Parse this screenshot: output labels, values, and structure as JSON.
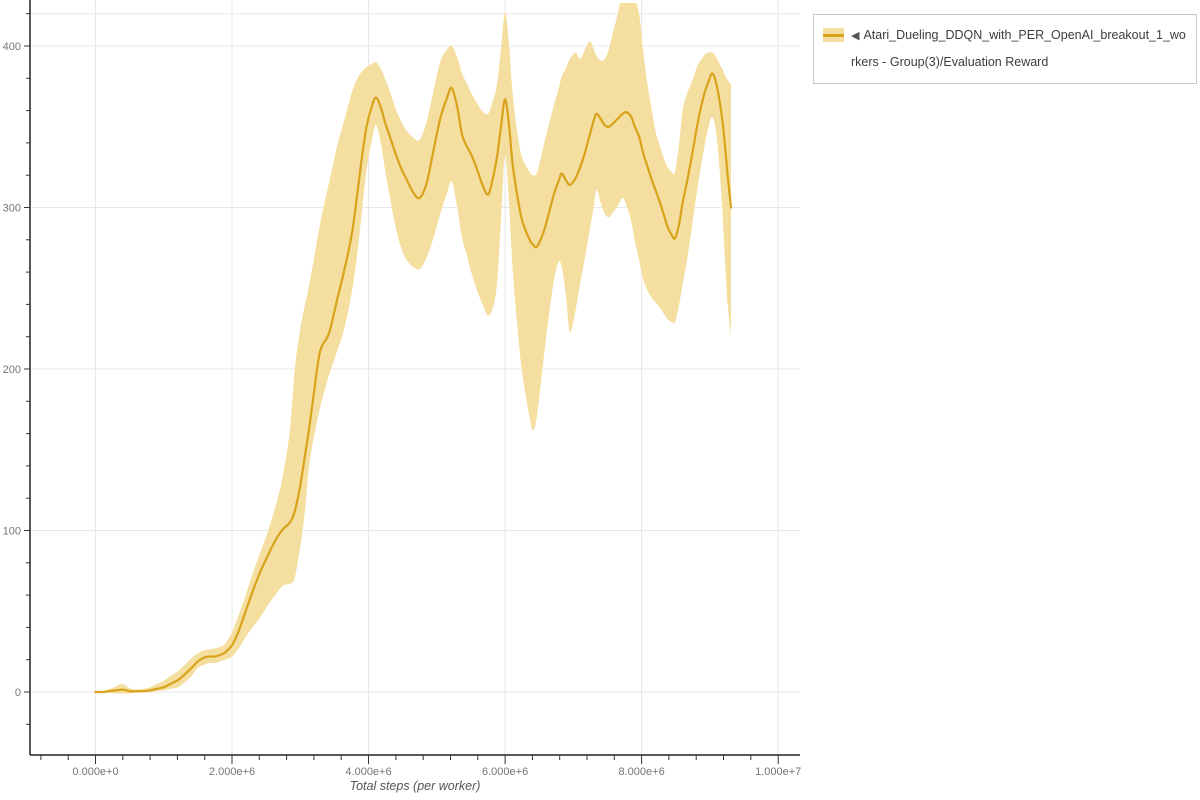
{
  "colors": {
    "line": "#d9a21b",
    "band": "#f5dfa0",
    "grid": "#e7e7e7",
    "axis": "#222222",
    "tick": "#333333",
    "tick_label": "#757575",
    "axis_title": "#555555",
    "legend_border": "#c9c9c9",
    "legend_text": "#3d3d3d"
  },
  "legend": {
    "collapse_icon": "◀",
    "series_label": "Atari_Dueling_DDQN_with_PER_OpenAI_breakout_1_workers - Group(3)/Evaluation Reward"
  },
  "chart_data": {
    "type": "line_with_band",
    "series_name": "Atari_Dueling_DDQN_with_PER_OpenAI_breakout_1_workers - Group(3)/Evaluation Reward",
    "xlabel": "Total steps (per worker)",
    "ylabel": "",
    "x_units": "steps (millions)",
    "grid": true,
    "legend_position": "top-right",
    "x_axis": {
      "major_ticks": [
        {
          "value": 0,
          "label": "0.000e+0"
        },
        {
          "value": 2,
          "label": "2.000e+6"
        },
        {
          "value": 4,
          "label": "4.000e+6"
        },
        {
          "value": 6,
          "label": "6.000e+6"
        },
        {
          "value": 8,
          "label": "8.000e+6"
        },
        {
          "value": 10,
          "label": "1.000e+7"
        }
      ],
      "minor_step": 0.4,
      "minor_range": [
        -0.8,
        10.0
      ],
      "xlim": [
        -0.959,
        10.32
      ]
    },
    "y_axis": {
      "major_ticks": [
        {
          "value": 0,
          "label": "0"
        },
        {
          "value": 100,
          "label": "100"
        },
        {
          "value": 200,
          "label": "200"
        },
        {
          "value": 300,
          "label": "300"
        },
        {
          "value": 400,
          "label": "400"
        }
      ],
      "minor_step": 20,
      "minor_range": [
        -20,
        420
      ],
      "top_boundary": 420,
      "ylim": [
        -39,
        428.5
      ]
    },
    "points_format": [
      "steps_millions",
      "mean",
      "band_low",
      "band_high"
    ],
    "points": [
      [
        0.0,
        0,
        0,
        0
      ],
      [
        0.1,
        0,
        -0.5,
        0.5
      ],
      [
        0.21,
        0.5,
        -0.5,
        2
      ],
      [
        0.3,
        1,
        -1,
        3.5
      ],
      [
        0.39,
        1.5,
        -1,
        5
      ],
      [
        0.5,
        0.5,
        -1,
        2.5
      ],
      [
        0.59,
        0.5,
        -0.5,
        1.5
      ],
      [
        0.7,
        0.5,
        0,
        2
      ],
      [
        0.8,
        1,
        0,
        3
      ],
      [
        0.9,
        2,
        0.5,
        5
      ],
      [
        1.0,
        3,
        1,
        7
      ],
      [
        1.1,
        5,
        2,
        10
      ],
      [
        1.21,
        7.5,
        3,
        13
      ],
      [
        1.31,
        11,
        6,
        17
      ],
      [
        1.41,
        15,
        10,
        21
      ],
      [
        1.5,
        19,
        15,
        24
      ],
      [
        1.6,
        21.5,
        17,
        26
      ],
      [
        1.68,
        22,
        18,
        26.5
      ],
      [
        1.75,
        22,
        18,
        27
      ],
      [
        1.83,
        23,
        19,
        28
      ],
      [
        1.9,
        24.5,
        20,
        30
      ],
      [
        2.0,
        29,
        22,
        37
      ],
      [
        2.1,
        38,
        27,
        48
      ],
      [
        2.2,
        50,
        34,
        60
      ],
      [
        2.3,
        62,
        40,
        73
      ],
      [
        2.41,
        74,
        46,
        86
      ],
      [
        2.53,
        85,
        54,
        100
      ],
      [
        2.65,
        95,
        61,
        117
      ],
      [
        2.75,
        101,
        66,
        135
      ],
      [
        2.85,
        105,
        67,
        163
      ],
      [
        2.92,
        112,
        71,
        200
      ],
      [
        3.0,
        128,
        90,
        225
      ],
      [
        3.07,
        147,
        113,
        240
      ],
      [
        3.13,
        163,
        140,
        252
      ],
      [
        3.2,
        185,
        158,
        268
      ],
      [
        3.29,
        211,
        176,
        290
      ],
      [
        3.42,
        222,
        196,
        315
      ],
      [
        3.54,
        243,
        211,
        338
      ],
      [
        3.65,
        262,
        226,
        355
      ],
      [
        3.76,
        285,
        249,
        372
      ],
      [
        3.84,
        310,
        273,
        380
      ],
      [
        3.9,
        330,
        296,
        384
      ],
      [
        3.97,
        350,
        323,
        387
      ],
      [
        4.05,
        363,
        342,
        389
      ],
      [
        4.11,
        368,
        351,
        390
      ],
      [
        4.18,
        362,
        340,
        386
      ],
      [
        4.24,
        353,
        324,
        380
      ],
      [
        4.32,
        343,
        305,
        371
      ],
      [
        4.39,
        334,
        289,
        362
      ],
      [
        4.47,
        325,
        276,
        354
      ],
      [
        4.55,
        318,
        268,
        348
      ],
      [
        4.66,
        309,
        263,
        343
      ],
      [
        4.75,
        306,
        262,
        342
      ],
      [
        4.85,
        315,
        269,
        353
      ],
      [
        4.95,
        335,
        281,
        372
      ],
      [
        5.05,
        355,
        296,
        390
      ],
      [
        5.15,
        368,
        309,
        398
      ],
      [
        5.22,
        374,
        316,
        400
      ],
      [
        5.3,
        362,
        300,
        393
      ],
      [
        5.37,
        345,
        281,
        383
      ],
      [
        5.45,
        337,
        269,
        376
      ],
      [
        5.49,
        334,
        262,
        372
      ],
      [
        5.57,
        326,
        251,
        366
      ],
      [
        5.66,
        315,
        241,
        360
      ],
      [
        5.75,
        308,
        233,
        358
      ],
      [
        5.82,
        318,
        238,
        366
      ],
      [
        5.88,
        331,
        252,
        376
      ],
      [
        5.94,
        350,
        292,
        398
      ],
      [
        6.0,
        367,
        332,
        421
      ],
      [
        6.06,
        350,
        301,
        400
      ],
      [
        6.11,
        327,
        262,
        371
      ],
      [
        6.18,
        307,
        226,
        346
      ],
      [
        6.25,
        292,
        198,
        331
      ],
      [
        6.36,
        280,
        170,
        322
      ],
      [
        6.41,
        277,
        162,
        320
      ],
      [
        6.47,
        276,
        172,
        322
      ],
      [
        6.58,
        287,
        212,
        341
      ],
      [
        6.7,
        306,
        251,
        361
      ],
      [
        6.78,
        316,
        266,
        373
      ],
      [
        6.83,
        321,
        263,
        381
      ],
      [
        6.89,
        317,
        246,
        386
      ],
      [
        6.95,
        314,
        223,
        392
      ],
      [
        7.03,
        318,
        236,
        396
      ],
      [
        7.1,
        325,
        253,
        392
      ],
      [
        7.17,
        334,
        269,
        398
      ],
      [
        7.24,
        345,
        286,
        403
      ],
      [
        7.3,
        354,
        301,
        398
      ],
      [
        7.34,
        358,
        311,
        394
      ],
      [
        7.4,
        355,
        303,
        391
      ],
      [
        7.46,
        351,
        296,
        392
      ],
      [
        7.52,
        350,
        294,
        398
      ],
      [
        7.58,
        352,
        297,
        408
      ],
      [
        7.65,
        355,
        301,
        420
      ],
      [
        7.72,
        358,
        306,
        434
      ],
      [
        7.78,
        359,
        301,
        438
      ],
      [
        7.85,
        356,
        291,
        436
      ],
      [
        7.9,
        350,
        279,
        430
      ],
      [
        7.97,
        343,
        266,
        418
      ],
      [
        8.02,
        334,
        256,
        398
      ],
      [
        8.08,
        326,
        249,
        378
      ],
      [
        8.15,
        317,
        244,
        360
      ],
      [
        8.21,
        310,
        241,
        346
      ],
      [
        8.27,
        303,
        238,
        338
      ],
      [
        8.33,
        295,
        234,
        330
      ],
      [
        8.38,
        288,
        231,
        325
      ],
      [
        8.44,
        283,
        229,
        322
      ],
      [
        8.49,
        281,
        229,
        322
      ],
      [
        8.55,
        290,
        240,
        340
      ],
      [
        8.6,
        303,
        252,
        360
      ],
      [
        8.66,
        315,
        266,
        370
      ],
      [
        8.71,
        326,
        280,
        375
      ],
      [
        8.77,
        340,
        298,
        382
      ],
      [
        8.82,
        352,
        312,
        388
      ],
      [
        8.88,
        364,
        328,
        392
      ],
      [
        8.93,
        372,
        340,
        395
      ],
      [
        8.98,
        378,
        350,
        396
      ],
      [
        9.03,
        383,
        356,
        396
      ],
      [
        9.08,
        379,
        350,
        394
      ],
      [
        9.13,
        369,
        330,
        390
      ],
      [
        9.18,
        355,
        300,
        386
      ],
      [
        9.22,
        339,
        268,
        382
      ],
      [
        9.26,
        320,
        240,
        379
      ],
      [
        9.31,
        300,
        220,
        376
      ]
    ]
  }
}
